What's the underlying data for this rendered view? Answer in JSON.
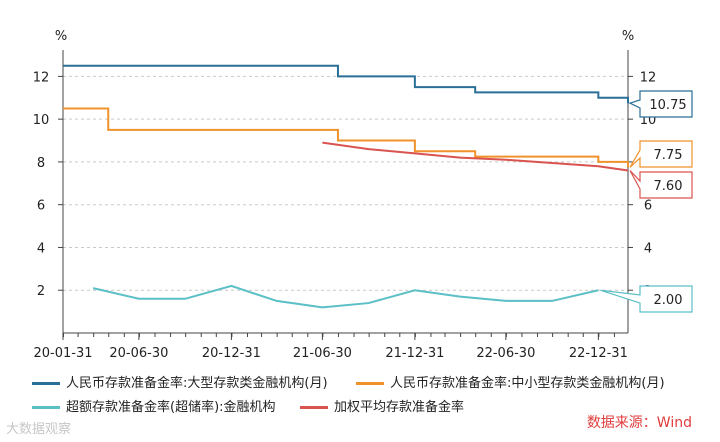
{
  "chart_data": {
    "type": "line",
    "left_axis_unit": "%",
    "right_axis_unit": "%",
    "ylim": [
      0,
      13
    ],
    "y_ticks": [
      2,
      4,
      6,
      8,
      10,
      12
    ],
    "x_tick_labels": [
      "20-01-31",
      "20-06-30",
      "20-12-31",
      "21-06-30",
      "21-12-31",
      "22-06-30",
      "22-12-31"
    ],
    "x_tick_dates": [
      "2020-01-31",
      "2020-06-30",
      "2020-12-31",
      "2021-06-30",
      "2021-12-31",
      "2022-06-30",
      "2022-12-31"
    ],
    "x_range": [
      "2020-01-31",
      "2023-02-28"
    ],
    "grid": "horizontal dashed",
    "legend_position": "bottom",
    "series": [
      {
        "name": "人民币存款准备金率:大型存款类金融机构(月)",
        "color": "#2a6f97",
        "step": true,
        "x": [
          "2020-01-31",
          "2020-02-29",
          "2020-03-31",
          "2020-04-30",
          "2020-05-31",
          "2020-06-30",
          "2020-07-31",
          "2020-08-31",
          "2020-09-30",
          "2020-10-31",
          "2020-11-30",
          "2020-12-31",
          "2021-01-31",
          "2021-02-28",
          "2021-03-31",
          "2021-04-30",
          "2021-05-31",
          "2021-06-30",
          "2021-07-31",
          "2021-08-31",
          "2021-09-30",
          "2021-10-31",
          "2021-11-30",
          "2021-12-31",
          "2022-01-31",
          "2022-02-28",
          "2022-03-31",
          "2022-04-30",
          "2022-05-31",
          "2022-06-30",
          "2022-07-31",
          "2022-08-31",
          "2022-09-30",
          "2022-10-31",
          "2022-11-30",
          "2022-12-31",
          "2023-01-31",
          "2023-02-28"
        ],
        "y": [
          12.5,
          12.5,
          12.5,
          12.5,
          12.5,
          12.5,
          12.5,
          12.5,
          12.5,
          12.5,
          12.5,
          12.5,
          12.5,
          12.5,
          12.5,
          12.5,
          12.5,
          12.5,
          12.0,
          12.0,
          12.0,
          12.0,
          12.0,
          11.5,
          11.5,
          11.5,
          11.5,
          11.25,
          11.25,
          11.25,
          11.25,
          11.25,
          11.25,
          11.25,
          11.25,
          11.0,
          11.0,
          10.75
        ]
      },
      {
        "name": "人民币存款准备金率:中小型存款类金融机构(月)",
        "color": "#f0922b",
        "step": true,
        "x": [
          "2020-01-31",
          "2020-02-29",
          "2020-03-31",
          "2020-04-30",
          "2020-05-31",
          "2020-06-30",
          "2020-07-31",
          "2020-08-31",
          "2020-09-30",
          "2020-10-31",
          "2020-11-30",
          "2020-12-31",
          "2021-01-31",
          "2021-02-28",
          "2021-03-31",
          "2021-04-30",
          "2021-05-31",
          "2021-06-30",
          "2021-07-31",
          "2021-08-31",
          "2021-09-30",
          "2021-10-31",
          "2021-11-30",
          "2021-12-31",
          "2022-01-31",
          "2022-02-28",
          "2022-03-31",
          "2022-04-30",
          "2022-05-31",
          "2022-06-30",
          "2022-07-31",
          "2022-08-31",
          "2022-09-30",
          "2022-10-31",
          "2022-11-30",
          "2022-12-31",
          "2023-01-31",
          "2023-02-28"
        ],
        "y": [
          10.5,
          10.5,
          10.5,
          9.5,
          9.5,
          9.5,
          9.5,
          9.5,
          9.5,
          9.5,
          9.5,
          9.5,
          9.5,
          9.5,
          9.5,
          9.5,
          9.5,
          9.5,
          9.0,
          9.0,
          9.0,
          9.0,
          9.0,
          8.5,
          8.5,
          8.5,
          8.5,
          8.25,
          8.25,
          8.25,
          8.25,
          8.25,
          8.25,
          8.25,
          8.25,
          8.0,
          8.0,
          7.75
        ]
      },
      {
        "name": "超额存款准备金率(超储率):金融机构",
        "color": "#5bbfc6",
        "step": false,
        "x": [
          "2020-03-31",
          "2020-06-30",
          "2020-09-30",
          "2020-12-31",
          "2021-03-31",
          "2021-06-30",
          "2021-09-30",
          "2021-12-31",
          "2022-03-31",
          "2022-06-30",
          "2022-09-30",
          "2022-12-31"
        ],
        "y": [
          2.1,
          1.6,
          1.6,
          2.2,
          1.5,
          1.2,
          1.4,
          2.0,
          1.7,
          1.5,
          1.5,
          2.0
        ]
      },
      {
        "name": "加权平均存款准备金率",
        "color": "#d9534f",
        "step": false,
        "x": [
          "2021-06-30",
          "2021-09-30",
          "2021-12-31",
          "2022-03-31",
          "2022-06-30",
          "2022-09-30",
          "2022-12-31",
          "2023-02-28"
        ],
        "y": [
          8.9,
          8.6,
          8.4,
          8.2,
          8.1,
          7.95,
          7.8,
          7.6
        ]
      }
    ],
    "end_labels": [
      {
        "value": "10.75",
        "series": 0
      },
      {
        "value": "7.75",
        "series": 1
      },
      {
        "value": "7.60",
        "series": 3
      },
      {
        "value": "2.00",
        "series": 2
      }
    ]
  },
  "footer": {
    "source": "数据来源：Wind",
    "watermark": "大数据观察"
  }
}
